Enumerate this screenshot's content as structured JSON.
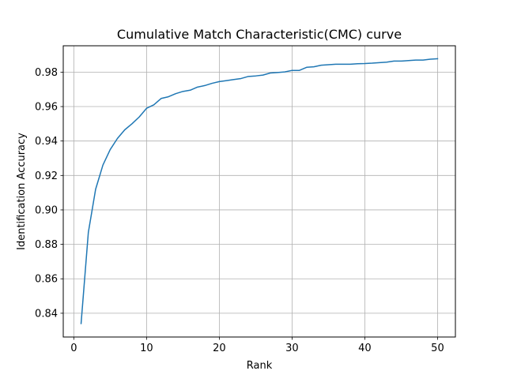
{
  "chart_data": {
    "type": "line",
    "title": "Cumulative Match Characteristic(CMC) curve",
    "xlabel": "Rank",
    "ylabel": "Identification Accuracy",
    "xlim": [
      -1.45,
      52.45
    ],
    "ylim": [
      0.8262,
      0.9953
    ],
    "xticks": [
      0,
      10,
      20,
      30,
      40,
      50
    ],
    "xtick_labels": [
      "0",
      "10",
      "20",
      "30",
      "40",
      "50"
    ],
    "yticks": [
      0.84,
      0.86,
      0.88,
      0.9,
      0.92,
      0.94,
      0.96,
      0.98
    ],
    "ytick_labels": [
      "0.84",
      "0.86",
      "0.88",
      "0.90",
      "0.92",
      "0.94",
      "0.96",
      "0.98"
    ],
    "grid": true,
    "line_color": "#1f77b4",
    "series": [
      {
        "x": [
          1,
          2,
          3,
          4,
          5,
          6,
          7,
          8,
          9,
          10,
          11,
          12,
          13,
          14,
          15,
          16,
          17,
          18,
          19,
          20,
          21,
          22,
          23,
          24,
          25,
          26,
          27,
          28,
          29,
          30,
          31,
          32,
          33,
          34,
          35,
          36,
          37,
          38,
          39,
          40,
          41,
          42,
          43,
          44,
          45,
          46,
          47,
          48,
          49,
          50
        ],
        "values": [
          0.834,
          0.887,
          0.912,
          0.926,
          0.935,
          0.9415,
          0.9465,
          0.95,
          0.954,
          0.959,
          0.961,
          0.9647,
          0.9657,
          0.9675,
          0.9688,
          0.9695,
          0.9713,
          0.9722,
          0.9735,
          0.9745,
          0.9751,
          0.9757,
          0.9763,
          0.9775,
          0.9778,
          0.9783,
          0.9795,
          0.9798,
          0.9801,
          0.981,
          0.981,
          0.9828,
          0.9831,
          0.984,
          0.9843,
          0.9846,
          0.9846,
          0.9846,
          0.9849,
          0.985,
          0.9852,
          0.9855,
          0.9858,
          0.9864,
          0.9864,
          0.9867,
          0.987,
          0.987,
          0.9875,
          0.9878
        ]
      }
    ]
  }
}
